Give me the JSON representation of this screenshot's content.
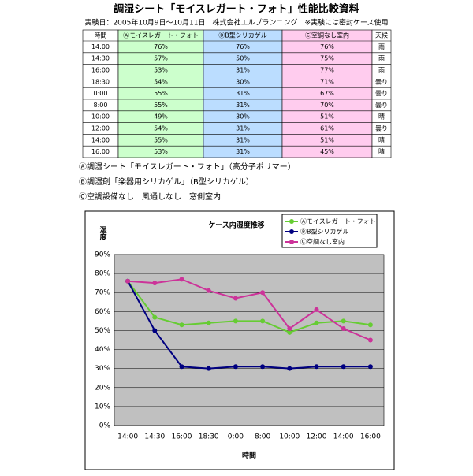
{
  "header": {
    "title": "調湿シート「モイスレガート・フォト」性能比較資料",
    "subtitle": "実験日：2005年10月9日〜10月11日　株式会社エルプランニング　※実験には密封ケース使用"
  },
  "table": {
    "columns": [
      "時間",
      "Ⓐモイスレガート・フォト",
      "ⒷB型シリカゲル",
      "Ⓒ空調なし室内",
      "天候"
    ],
    "rows": [
      [
        "14:00",
        "76%",
        "76%",
        "76%",
        "雨"
      ],
      [
        "14:30",
        "57%",
        "50%",
        "75%",
        "雨"
      ],
      [
        "16:00",
        "53%",
        "31%",
        "77%",
        "雨"
      ],
      [
        "18:30",
        "54%",
        "30%",
        "71%",
        "曇り"
      ],
      [
        "0:00",
        "55%",
        "31%",
        "67%",
        "曇り"
      ],
      [
        "8:00",
        "55%",
        "31%",
        "70%",
        "曇り"
      ],
      [
        "10:00",
        "49%",
        "30%",
        "51%",
        "晴"
      ],
      [
        "12:00",
        "54%",
        "31%",
        "61%",
        "曇り"
      ],
      [
        "14:00",
        "55%",
        "31%",
        "51%",
        "晴"
      ],
      [
        "16:00",
        "53%",
        "31%",
        "45%",
        "晴"
      ]
    ]
  },
  "notes": [
    "Ⓐ調湿シート「モイスレガート・フォト」（高分子ポリマー）",
    "Ⓑ調湿剤「楽器用シリカゲル」（B型シリカゲル）",
    "Ⓒ空調設備なし　風通しなし　窓側室内"
  ],
  "chart_data": {
    "type": "line",
    "title": "ケース内湿度推移",
    "x_label": "時間",
    "y_label": "湿度",
    "categories": [
      "14:00",
      "14:30",
      "16:00",
      "18:30",
      "0:00",
      "8:00",
      "10:00",
      "12:00",
      "14:00",
      "16:00"
    ],
    "series": [
      {
        "name": "Ⓐモイスレガート・フォト",
        "color": "#66cc33",
        "values": [
          76,
          57,
          53,
          54,
          55,
          55,
          49,
          54,
          55,
          53
        ]
      },
      {
        "name": "ⒷB型シリカゲル",
        "color": "#000080",
        "values": [
          76,
          50,
          31,
          30,
          31,
          31,
          30,
          31,
          31,
          31
        ]
      },
      {
        "name": "Ⓒ空調なし室内",
        "color": "#cc3399",
        "values": [
          76,
          75,
          77,
          71,
          67,
          70,
          51,
          61,
          51,
          45
        ]
      }
    ],
    "ylim": [
      0,
      90
    ],
    "yticks": [
      {
        "value": 0,
        "label": "0%"
      },
      {
        "value": 10,
        "label": "10%"
      },
      {
        "value": 20,
        "label": "20%"
      },
      {
        "value": 30,
        "label": "30%"
      },
      {
        "value": 40,
        "label": "40%"
      },
      {
        "value": 50,
        "label": "50%"
      },
      {
        "value": 60,
        "label": "60%"
      },
      {
        "value": 70,
        "label": "70%"
      },
      {
        "value": 80,
        "label": "80%"
      },
      {
        "value": 90,
        "label": "90%"
      }
    ],
    "grid": true,
    "plot_background": "#c0c0c0",
    "table_colors": [
      "#ffffff",
      "#ccffcc",
      "#bbddff",
      "#ffccee",
      "#ffffff"
    ]
  }
}
